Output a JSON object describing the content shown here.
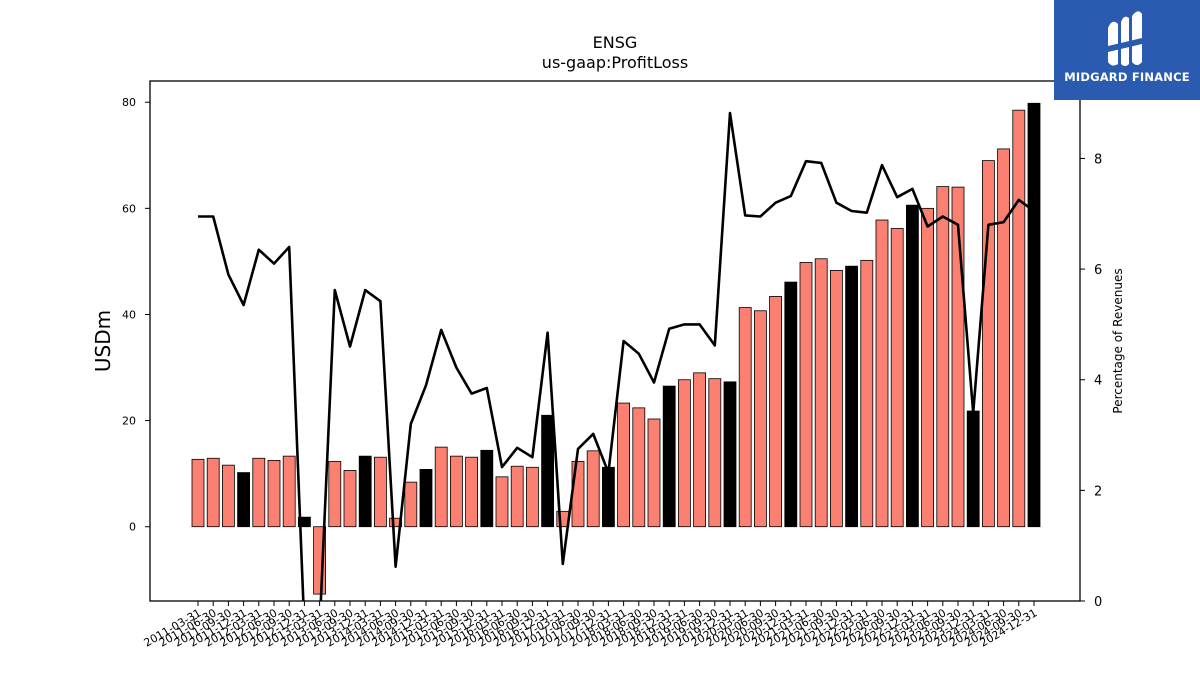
{
  "chart_data": {
    "type": "bar+line",
    "title": "ENSG",
    "subtitle": "us-gaap:ProfitLoss",
    "ylabel": "USDm",
    "y2label": "Percentage of Revenues",
    "ylim": [
      -14,
      84
    ],
    "y2lim": [
      0,
      9.4
    ],
    "yticks": [
      0,
      20,
      40,
      60,
      80
    ],
    "y2ticks": [
      0,
      2,
      4,
      6,
      8
    ],
    "categories": [
      "2011-03-31",
      "2011-06-30",
      "2011-09-30",
      "2011-12-31",
      "2012-03-31",
      "2012-06-30",
      "2012-09-30",
      "2012-12-31",
      "2013-03-31",
      "2013-06-30",
      "2013-09-30",
      "2013-12-31",
      "2014-03-31",
      "2014-06-30",
      "2014-09-30",
      "2014-12-31",
      "2015-03-31",
      "2015-06-30",
      "2015-09-30",
      "2015-12-31",
      "2016-03-31",
      "2016-06-30",
      "2016-09-30",
      "2016-12-31",
      "2017-03-31",
      "2017-06-30",
      "2017-09-30",
      "2017-12-31",
      "2018-03-31",
      "2018-06-30",
      "2018-09-30",
      "2018-12-31",
      "2019-03-31",
      "2019-06-30",
      "2019-09-30",
      "2019-12-31",
      "2020-03-31",
      "2020-06-30",
      "2020-09-30",
      "2020-12-31",
      "2021-03-31",
      "2021-06-30",
      "2021-09-30",
      "2021-12-31",
      "2022-03-31",
      "2022-06-30",
      "2022-09-30",
      "2022-12-31",
      "2023-03-31",
      "2023-06-30",
      "2023-09-30",
      "2023-12-31",
      "2024-03-31",
      "2024-06-30",
      "2024-09-30",
      "2024-12-31"
    ],
    "x_tick_labels": [
      "2011-03-31",
      "2011-06-30",
      "2011-09-30",
      "2011-12-31",
      "2012-03-31",
      "2012-06-30",
      "2012-09-30",
      "2012-12-31",
      "2013-03-31",
      "2013-06-30",
      "2013-09-30",
      "2013-12-31",
      "2014-03-31",
      "2014-06-30",
      "2014-09-30",
      "2014-12-31",
      "2015-03-31",
      "2015-06-30",
      "2015-09-30",
      "2015-12-31",
      "2016-03-31",
      "2016-06-30",
      "2016-09-30",
      "2016-12-31",
      "2017-03-31",
      "2017-06-30",
      "2017-09-30",
      "2017-12-31",
      "2018-03-31",
      "2018-06-30",
      "2018-09-30",
      "2018-12-31",
      "2019-03-31",
      "2019-06-30",
      "2019-09-30",
      "2019-12-31",
      "2020-03-31",
      "2020-06-30",
      "2020-09-30",
      "2020-12-31",
      "2021-03-31",
      "2021-06-30",
      "2021-09-30",
      "2021-12-31",
      "2022-03-31",
      "2022-06-30",
      "2022-09-30",
      "2022-12-31",
      "2023-03-31",
      "2023-06-30",
      "2023-09-30",
      "2023-12-31",
      "2024-03-31",
      "2024-06-30",
      "2024-09-30",
      "2024-12-31"
    ],
    "series": [
      {
        "type": "bar",
        "values": [
          12.7,
          12.9,
          11.6,
          10.2,
          12.9,
          12.5,
          13.3,
          1.8,
          -12.7,
          12.3,
          10.6,
          13.3,
          13.1,
          1.6,
          8.4,
          10.8,
          15.0,
          13.3,
          13.1,
          14.4,
          9.4,
          11.4,
          11.2,
          21.0,
          2.9,
          12.3,
          14.3,
          11.2,
          23.3,
          22.4,
          20.3,
          26.5,
          27.7,
          29.0,
          27.9,
          27.3,
          41.3,
          40.7,
          43.4,
          46.1,
          49.8,
          50.5,
          48.3,
          49.1,
          50.2,
          57.8,
          56.2,
          60.6,
          60.0,
          64.1,
          64.0,
          21.8,
          69.0,
          71.2,
          78.5,
          79.8
        ],
        "highlight": [
          false,
          false,
          false,
          true,
          false,
          false,
          false,
          true,
          false,
          false,
          false,
          true,
          false,
          false,
          false,
          true,
          false,
          false,
          false,
          true,
          false,
          false,
          false,
          true,
          false,
          false,
          false,
          true,
          false,
          false,
          false,
          true,
          false,
          false,
          false,
          true,
          false,
          false,
          false,
          true,
          false,
          false,
          false,
          true,
          false,
          false,
          false,
          true,
          false,
          false,
          false,
          true,
          false,
          false,
          false,
          true
        ]
      },
      {
        "type": "line",
        "axis": "right",
        "values": [
          6.95,
          6.95,
          5.9,
          5.35,
          6.35,
          6.1,
          6.4,
          -0.5,
          -0.5,
          5.62,
          4.6,
          5.62,
          5.42,
          0.62,
          3.2,
          3.9,
          4.9,
          4.22,
          3.75,
          3.85,
          2.42,
          2.77,
          2.6,
          4.85,
          0.67,
          2.75,
          3.02,
          2.32,
          4.7,
          4.47,
          3.95,
          4.92,
          5.0,
          5.0,
          4.62,
          8.82,
          6.97,
          6.95,
          7.2,
          7.32,
          7.95,
          7.92,
          7.2,
          7.05,
          7.02,
          7.88,
          7.3,
          7.45,
          6.77,
          6.95,
          6.8,
          3.4,
          6.8,
          6.85,
          7.25,
          7.05
        ]
      }
    ],
    "colors": {
      "bar": "#fa8072",
      "bar_highlight": "#000000",
      "line": "#000000"
    },
    "logo_text": "MIDGARD FINANCE"
  }
}
